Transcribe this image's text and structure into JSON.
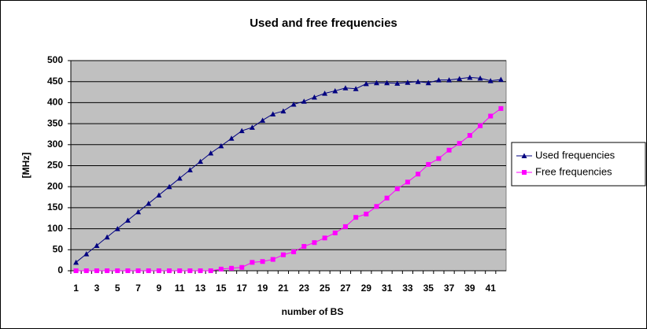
{
  "chart_data": {
    "type": "line",
    "title": "Used and free frequencies",
    "x_label": "number of BS",
    "y_label": "[MHz]",
    "categories": [
      1,
      null,
      3,
      null,
      5,
      null,
      7,
      null,
      9,
      null,
      11,
      null,
      13,
      null,
      15,
      null,
      17,
      null,
      19,
      null,
      21,
      null,
      23,
      null,
      25,
      null,
      27,
      null,
      29,
      null,
      31,
      null,
      33,
      null,
      35,
      null,
      37,
      null,
      39,
      null,
      41,
      null
    ],
    "series": [
      {
        "name": "Used frequencies",
        "color": "#000080",
        "marker": "triangle",
        "values": [
          20,
          40,
          60,
          80,
          100,
          120,
          140,
          160,
          180,
          200,
          220,
          240,
          260,
          280,
          297,
          315,
          333,
          341,
          358,
          373,
          380,
          396,
          403,
          413,
          422,
          428,
          435,
          433,
          445,
          447,
          447,
          446,
          448,
          450,
          447,
          454,
          454,
          457,
          460,
          458,
          452,
          455
        ]
      },
      {
        "name": "Free frequencies",
        "color": "#ff00ff",
        "marker": "square",
        "values": [
          0,
          0,
          0,
          0,
          0,
          0,
          0,
          0,
          0,
          0,
          0,
          0,
          0,
          0,
          4,
          6,
          8,
          20,
          22,
          27,
          38,
          45,
          58,
          67,
          78,
          90,
          105,
          127,
          135,
          153,
          173,
          195,
          211,
          230,
          253,
          267,
          287,
          303,
          322,
          345,
          368,
          386
        ]
      }
    ],
    "ylim": [
      0,
      500
    ],
    "yticks": [
      0,
      50,
      100,
      150,
      200,
      250,
      300,
      350,
      400,
      450,
      500
    ],
    "grid": true,
    "legend": "right",
    "plot_background": "#c0c0c0"
  }
}
